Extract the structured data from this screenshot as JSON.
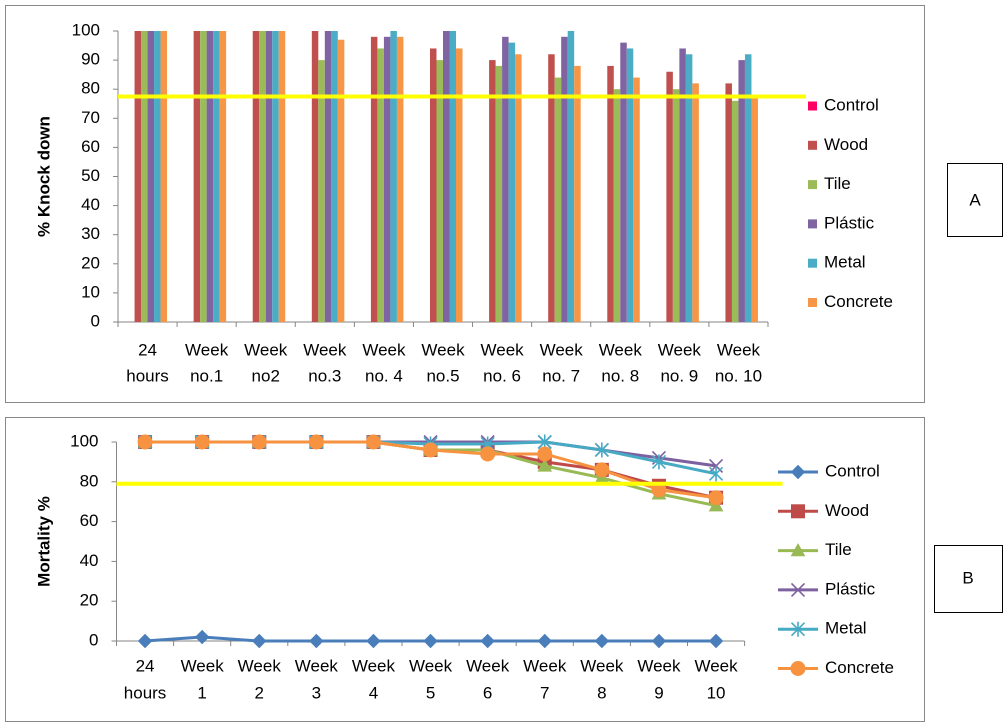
{
  "chart_data": [
    {
      "type": "bar",
      "panel_label": "A",
      "y_label": "% Knock down",
      "categories": [
        [
          "24",
          "hours"
        ],
        [
          "Week",
          "no.1"
        ],
        [
          "Week",
          "no2"
        ],
        [
          "Week",
          "no.3"
        ],
        [
          "Week",
          "no. 4"
        ],
        [
          "Week",
          "no.5"
        ],
        [
          "Week",
          "no. 6"
        ],
        [
          "Week",
          "no. 7"
        ],
        [
          "Week",
          "no. 8"
        ],
        [
          "Week",
          "no. 9"
        ],
        [
          "Week",
          "no. 10"
        ]
      ],
      "series": [
        {
          "name": "Control",
          "color": "#ff0066",
          "values": [
            0,
            0,
            0,
            0,
            0,
            0,
            0,
            0,
            0,
            0,
            0
          ]
        },
        {
          "name": "Wood",
          "color": "#c0504d",
          "values": [
            100,
            100,
            100,
            100,
            98,
            94,
            90,
            92,
            88,
            86,
            82
          ]
        },
        {
          "name": "Tile",
          "color": "#9bbb59",
          "values": [
            100,
            100,
            100,
            90,
            94,
            90,
            88,
            84,
            80,
            80,
            76
          ]
        },
        {
          "name": "Plástic",
          "color": "#8064a2",
          "values": [
            100,
            100,
            100,
            100,
            98,
            100,
            98,
            98,
            96,
            94,
            90
          ]
        },
        {
          "name": "Metal",
          "color": "#4bacc6",
          "values": [
            100,
            100,
            100,
            100,
            100,
            100,
            96,
            100,
            94,
            92,
            92
          ]
        },
        {
          "name": "Concrete",
          "color": "#f79646",
          "values": [
            100,
            100,
            100,
            97,
            98,
            94,
            92,
            88,
            84,
            82,
            78
          ]
        }
      ],
      "ylim": [
        0,
        100
      ],
      "yticks": [
        0,
        10,
        20,
        30,
        40,
        50,
        60,
        70,
        80,
        90,
        100
      ],
      "reference_line": {
        "value": 77.5,
        "color": "#ffff00"
      },
      "legend": "right"
    },
    {
      "type": "line",
      "panel_label": "B",
      "y_label": "Mortality %",
      "categories": [
        [
          "24",
          "hours"
        ],
        [
          "Week",
          "1"
        ],
        [
          "Week",
          "2"
        ],
        [
          "Week",
          "3"
        ],
        [
          "Week",
          "4"
        ],
        [
          "Week",
          "5"
        ],
        [
          "Week",
          "6"
        ],
        [
          "Week",
          "7"
        ],
        [
          "Week",
          "8"
        ],
        [
          "Week",
          "9"
        ],
        [
          "Week",
          "10"
        ]
      ],
      "series": [
        {
          "name": "Control",
          "color": "#4a7ebb",
          "marker": "diamond",
          "values": [
            0,
            2,
            0,
            0,
            0,
            0,
            0,
            0,
            0,
            0,
            0
          ]
        },
        {
          "name": "Wood",
          "color": "#be4b48",
          "marker": "square",
          "values": [
            100,
            100,
            100,
            100,
            100,
            96,
            96,
            90,
            86,
            78,
            72
          ]
        },
        {
          "name": "Tile",
          "color": "#98b954",
          "marker": "triangle",
          "values": [
            100,
            100,
            100,
            100,
            100,
            96,
            96,
            88,
            82,
            74,
            68
          ]
        },
        {
          "name": "Plástic",
          "color": "#7d60a0",
          "marker": "x",
          "values": [
            100,
            100,
            100,
            100,
            100,
            100,
            100,
            100,
            96,
            92,
            88
          ]
        },
        {
          "name": "Metal",
          "color": "#46aac5",
          "marker": "star",
          "values": [
            100,
            100,
            100,
            100,
            100,
            99,
            99,
            100,
            96,
            90,
            84
          ]
        },
        {
          "name": "Concrete",
          "color": "#f69240",
          "marker": "circle",
          "values": [
            100,
            100,
            100,
            100,
            100,
            96,
            94,
            94,
            86,
            76,
            72
          ]
        }
      ],
      "ylim": [
        0,
        100
      ],
      "yticks": [
        0,
        20,
        40,
        60,
        80,
        100
      ],
      "reference_line": {
        "value": 79,
        "color": "#ffff00"
      },
      "legend": "right"
    }
  ]
}
